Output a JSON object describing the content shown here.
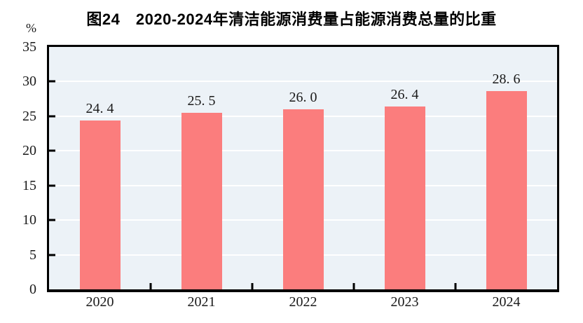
{
  "chart_data": {
    "type": "bar",
    "title": "图24　2020-2024年清洁能源消费量占能源消费总量的比重",
    "unit_label": "%",
    "categories": [
      "2020",
      "2021",
      "2022",
      "2023",
      "2024"
    ],
    "values": [
      24.4,
      25.5,
      26.0,
      26.4,
      28.6
    ],
    "value_labels": [
      "24. 4",
      "25. 5",
      "26. 0",
      "26. 4",
      "28. 6"
    ],
    "xlabel": "",
    "ylabel": "%",
    "ylim": [
      0,
      35
    ],
    "yticks": [
      0,
      5,
      10,
      15,
      20,
      25,
      30,
      35
    ],
    "ytick_labels": [
      "0",
      "5",
      "10",
      "15",
      "20",
      "25",
      "30",
      "35"
    ],
    "grid": "horizontal",
    "legend": "none",
    "colors": {
      "bar": "#FB7D7D",
      "plot_background": "#ECF2F7",
      "gridline": "#FFFFFF",
      "axis_frame": "#000000",
      "text": "#1A1A1A"
    }
  }
}
